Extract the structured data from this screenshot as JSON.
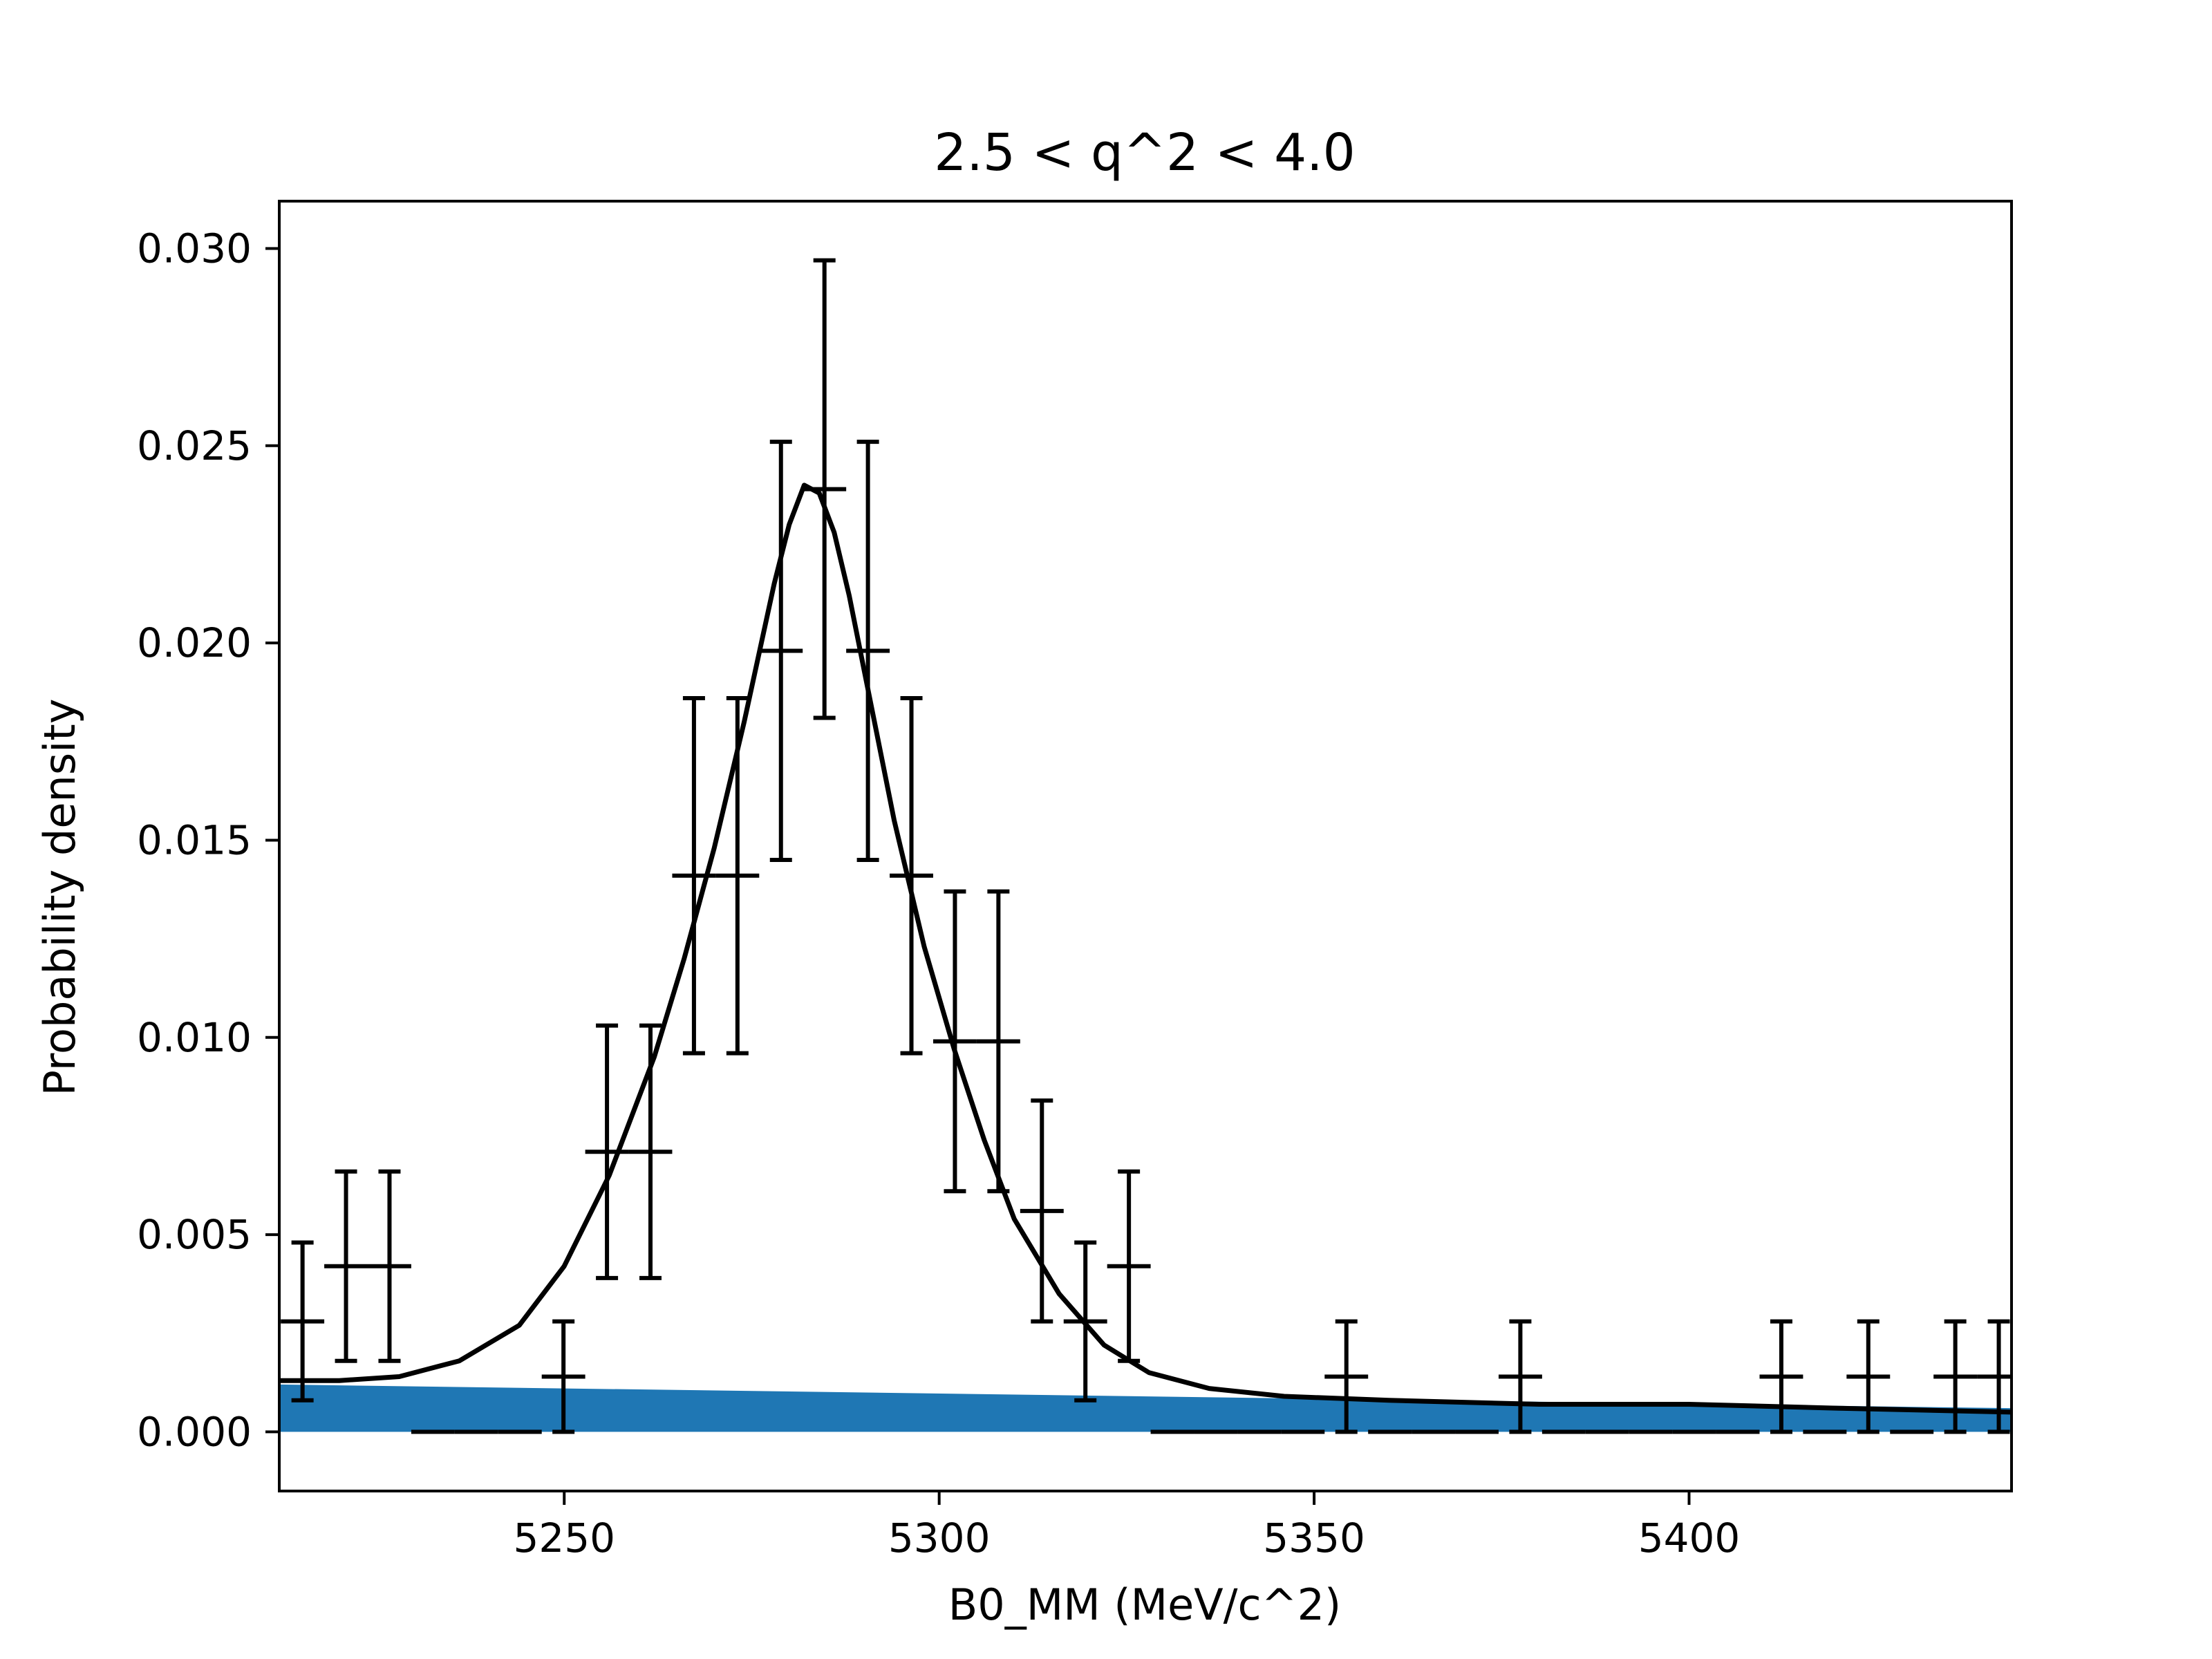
{
  "chart_data": {
    "type": "scatter",
    "title": "2.5 < q^2 < 4.0",
    "xlabel": "B0_MM (MeV/c^2)",
    "ylabel": "Probability density",
    "xlim": [
      5212,
      5443
    ],
    "ylim": [
      -0.0015,
      0.0312
    ],
    "xticks": [
      5250,
      5300,
      5350,
      5400
    ],
    "xtick_labels": [
      "5250",
      "5300",
      "5350",
      "5400"
    ],
    "yticks": [
      0.0,
      0.005,
      0.01,
      0.015,
      0.02,
      0.025,
      0.03
    ],
    "ytick_labels": [
      "0.000",
      "0.005",
      "0.010",
      "0.015",
      "0.020",
      "0.025",
      "0.030"
    ],
    "grid": false,
    "series": [
      {
        "kind": "errorbar",
        "color": "#000000",
        "bin_width": 5.8,
        "points": [
          {
            "x": 5215.1,
            "y": 0.0028,
            "yerr_low": 0.002,
            "yerr_high": 0.002
          },
          {
            "x": 5220.9,
            "y": 0.0042,
            "yerr_low": 0.0024,
            "yerr_high": 0.0024
          },
          {
            "x": 5226.7,
            "y": 0.0042,
            "yerr_low": 0.0024,
            "yerr_high": 0.0024
          },
          {
            "x": 5232.5,
            "y": 0.0,
            "yerr_low": 0.0,
            "yerr_high": 0.0
          },
          {
            "x": 5238.3,
            "y": 0.0,
            "yerr_low": 0.0,
            "yerr_high": 0.0
          },
          {
            "x": 5244.1,
            "y": 0.0,
            "yerr_low": 0.0,
            "yerr_high": 0.0
          },
          {
            "x": 5249.9,
            "y": 0.0014,
            "yerr_low": 0.0014,
            "yerr_high": 0.0014
          },
          {
            "x": 5255.7,
            "y": 0.0071,
            "yerr_low": 0.0032,
            "yerr_high": 0.0032
          },
          {
            "x": 5261.5,
            "y": 0.0071,
            "yerr_low": 0.0032,
            "yerr_high": 0.0032
          },
          {
            "x": 5267.3,
            "y": 0.0141,
            "yerr_low": 0.0045,
            "yerr_high": 0.0045
          },
          {
            "x": 5273.1,
            "y": 0.0141,
            "yerr_low": 0.0045,
            "yerr_high": 0.0045
          },
          {
            "x": 5278.9,
            "y": 0.0198,
            "yerr_low": 0.0053,
            "yerr_high": 0.0053
          },
          {
            "x": 5284.7,
            "y": 0.0239,
            "yerr_low": 0.0058,
            "yerr_high": 0.0058
          },
          {
            "x": 5290.5,
            "y": 0.0198,
            "yerr_low": 0.0053,
            "yerr_high": 0.0053
          },
          {
            "x": 5296.3,
            "y": 0.0141,
            "yerr_low": 0.0045,
            "yerr_high": 0.0045
          },
          {
            "x": 5302.1,
            "y": 0.0099,
            "yerr_low": 0.0038,
            "yerr_high": 0.0038
          },
          {
            "x": 5307.9,
            "y": 0.0099,
            "yerr_low": 0.0038,
            "yerr_high": 0.0038
          },
          {
            "x": 5313.7,
            "y": 0.0056,
            "yerr_low": 0.0028,
            "yerr_high": 0.0028
          },
          {
            "x": 5319.5,
            "y": 0.0028,
            "yerr_low": 0.002,
            "yerr_high": 0.002
          },
          {
            "x": 5325.3,
            "y": 0.0042,
            "yerr_low": 0.0024,
            "yerr_high": 0.0024
          },
          {
            "x": 5331.1,
            "y": 0.0,
            "yerr_low": 0.0,
            "yerr_high": 0.0
          },
          {
            "x": 5336.9,
            "y": 0.0,
            "yerr_low": 0.0,
            "yerr_high": 0.0
          },
          {
            "x": 5342.7,
            "y": 0.0,
            "yerr_low": 0.0,
            "yerr_high": 0.0
          },
          {
            "x": 5348.5,
            "y": 0.0,
            "yerr_low": 0.0,
            "yerr_high": 0.0
          },
          {
            "x": 5354.3,
            "y": 0.0014,
            "yerr_low": 0.0014,
            "yerr_high": 0.0014
          },
          {
            "x": 5360.1,
            "y": 0.0,
            "yerr_low": 0.0,
            "yerr_high": 0.0
          },
          {
            "x": 5365.9,
            "y": 0.0,
            "yerr_low": 0.0,
            "yerr_high": 0.0
          },
          {
            "x": 5371.7,
            "y": 0.0,
            "yerr_low": 0.0,
            "yerr_high": 0.0
          },
          {
            "x": 5377.5,
            "y": 0.0014,
            "yerr_low": 0.0014,
            "yerr_high": 0.0014
          },
          {
            "x": 5383.3,
            "y": 0.0,
            "yerr_low": 0.0,
            "yerr_high": 0.0
          },
          {
            "x": 5389.1,
            "y": 0.0,
            "yerr_low": 0.0,
            "yerr_high": 0.0
          },
          {
            "x": 5394.9,
            "y": 0.0,
            "yerr_low": 0.0,
            "yerr_high": 0.0
          },
          {
            "x": 5400.7,
            "y": 0.0,
            "yerr_low": 0.0,
            "yerr_high": 0.0
          },
          {
            "x": 5406.5,
            "y": 0.0,
            "yerr_low": 0.0,
            "yerr_high": 0.0
          },
          {
            "x": 5412.3,
            "y": 0.0014,
            "yerr_low": 0.0014,
            "yerr_high": 0.0014
          },
          {
            "x": 5418.1,
            "y": 0.0,
            "yerr_low": 0.0,
            "yerr_high": 0.0
          },
          {
            "x": 5423.9,
            "y": 0.0014,
            "yerr_low": 0.0014,
            "yerr_high": 0.0014
          },
          {
            "x": 5429.7,
            "y": 0.0,
            "yerr_low": 0.0,
            "yerr_high": 0.0
          },
          {
            "x": 5435.5,
            "y": 0.0014,
            "yerr_low": 0.0014,
            "yerr_high": 0.0014
          },
          {
            "x": 5441.3,
            "y": 0.0014,
            "yerr_low": 0.0014,
            "yerr_high": 0.0014
          }
        ]
      },
      {
        "kind": "line",
        "color": "#000000",
        "x": [
          5212,
          5220,
          5228,
          5236,
          5244,
          5250,
          5256,
          5262,
          5266,
          5270,
          5274,
          5278,
          5280,
          5282,
          5284,
          5286,
          5288,
          5290,
          5294,
          5298,
          5302,
          5306,
          5310,
          5316,
          5322,
          5328,
          5336,
          5346,
          5360,
          5380,
          5400,
          5420,
          5443
        ],
        "y": [
          0.0013,
          0.0013,
          0.0014,
          0.0018,
          0.0027,
          0.0042,
          0.0065,
          0.0095,
          0.012,
          0.0148,
          0.018,
          0.0215,
          0.023,
          0.024,
          0.0238,
          0.0228,
          0.0212,
          0.0193,
          0.0155,
          0.0123,
          0.0097,
          0.0074,
          0.0054,
          0.0035,
          0.0022,
          0.0015,
          0.0011,
          0.0009,
          0.0008,
          0.0007,
          0.0007,
          0.0006,
          0.0005
        ]
      },
      {
        "kind": "area",
        "color": "#1f77b4",
        "x": [
          5212,
          5443
        ],
        "y": [
          0.0012,
          0.0006
        ]
      }
    ]
  }
}
